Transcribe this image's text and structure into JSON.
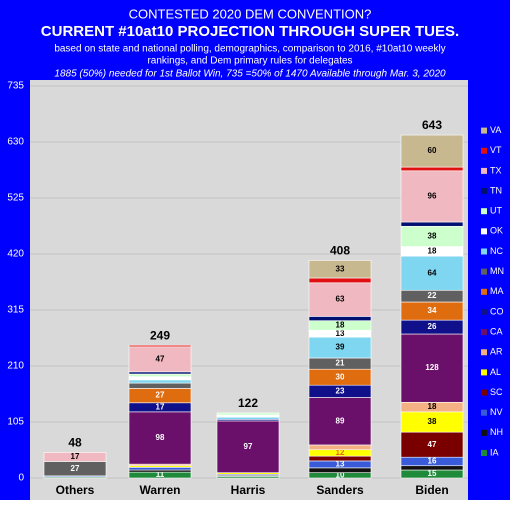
{
  "chart_data": {
    "type": "stacked-bar",
    "title": "CONTESTED 2020 DEM CONVENTION?",
    "subtitle": "CURRENT #10at10 PROJECTION THROUGH SUPER TUES.",
    "notes": [
      "based on state and national polling, demographics, comparison to 2016, #10at10 weekly",
      "rankings, and Dem primary rules for delegates"
    ],
    "annotation": "1885 (50%) needed for 1st Ballot Win, 735 =50% of 1470 Available through Mar. 3, 2020",
    "categories": [
      "Others",
      "Warren",
      "Harris",
      "Sanders",
      "Biden"
    ],
    "totals": [
      48,
      249,
      122,
      408,
      643
    ],
    "ylim": [
      0,
      735
    ],
    "yticks": [
      0,
      105,
      210,
      315,
      420,
      525,
      630,
      735
    ],
    "grid": true,
    "series": [
      {
        "name": "IA",
        "color": "#1e8a3a",
        "values": [
          2,
          11,
          3,
          10,
          15
        ],
        "value_labels": [
          null,
          "11",
          null,
          "10",
          "15"
        ]
      },
      {
        "name": "NH",
        "color": "#111111",
        "values": [
          0,
          4,
          2,
          9,
          8
        ],
        "value_labels": [
          null,
          null,
          null,
          null,
          null
        ]
      },
      {
        "name": "NV",
        "color": "#3a5bd9",
        "values": [
          2,
          5,
          2,
          13,
          16
        ],
        "value_labels": [
          null,
          null,
          null,
          "13",
          "16"
        ]
      },
      {
        "name": "SC",
        "color": "#7a0000",
        "values": [
          0,
          0,
          0,
          9,
          47
        ],
        "value_labels": [
          null,
          null,
          null,
          null,
          "47"
        ]
      },
      {
        "name": "AL",
        "color": "#ffff00",
        "values": [
          0,
          3,
          3,
          12,
          38
        ],
        "value_labels": [
          null,
          null,
          null,
          "12",
          "38"
        ]
      },
      {
        "name": "AR",
        "color": "#f4b183",
        "values": [
          0,
          3,
          0,
          9,
          18
        ],
        "value_labels": [
          null,
          null,
          null,
          null,
          "18"
        ]
      },
      {
        "name": "CA",
        "color": "#6a0f6a",
        "values": [
          0,
          98,
          97,
          89,
          128
        ],
        "value_labels": [
          null,
          "98",
          "97",
          "89",
          "128"
        ]
      },
      {
        "name": "CO",
        "color": "#10108a",
        "values": [
          0,
          17,
          3,
          23,
          26
        ],
        "value_labels": [
          null,
          "17",
          null,
          "23",
          "26"
        ]
      },
      {
        "name": "MA",
        "color": "#e06c10",
        "values": [
          0,
          27,
          0,
          30,
          34
        ],
        "value_labels": [
          null,
          "27",
          null,
          "30",
          "34"
        ]
      },
      {
        "name": "MN",
        "color": "#606060",
        "values": [
          27,
          10,
          0,
          21,
          22
        ],
        "value_labels": [
          "27",
          null,
          null,
          "21",
          "22"
        ]
      },
      {
        "name": "NC",
        "color": "#7fd6f0",
        "values": [
          0,
          6,
          4,
          39,
          64
        ],
        "value_labels": [
          null,
          null,
          null,
          "39",
          "64"
        ]
      },
      {
        "name": "OK",
        "color": "#ffffff",
        "values": [
          0,
          6,
          4,
          13,
          18
        ],
        "value_labels": [
          null,
          null,
          null,
          "13",
          "18"
        ]
      },
      {
        "name": "UT",
        "color": "#ccffcc",
        "values": [
          0,
          5,
          4,
          18,
          38
        ],
        "value_labels": [
          null,
          null,
          null,
          "18",
          "38"
        ]
      },
      {
        "name": "TN",
        "color": "#001070",
        "values": [
          0,
          4,
          0,
          8,
          8
        ],
        "value_labels": [
          null,
          null,
          null,
          null,
          null
        ]
      },
      {
        "name": "TX",
        "color": "#f0b8c0",
        "values": [
          17,
          47,
          0,
          63,
          96
        ],
        "value_labels": [
          "17",
          "47",
          null,
          "63",
          "96"
        ]
      },
      {
        "name": "VT",
        "color": "#e01010",
        "values": [
          0,
          3,
          0,
          9,
          7
        ],
        "value_labels": [
          null,
          null,
          null,
          null,
          null
        ]
      },
      {
        "name": "VA",
        "color": "#c8b890",
        "values": [
          0,
          0,
          0,
          33,
          60
        ],
        "value_labels": [
          null,
          null,
          null,
          "33",
          "60"
        ]
      }
    ]
  }
}
